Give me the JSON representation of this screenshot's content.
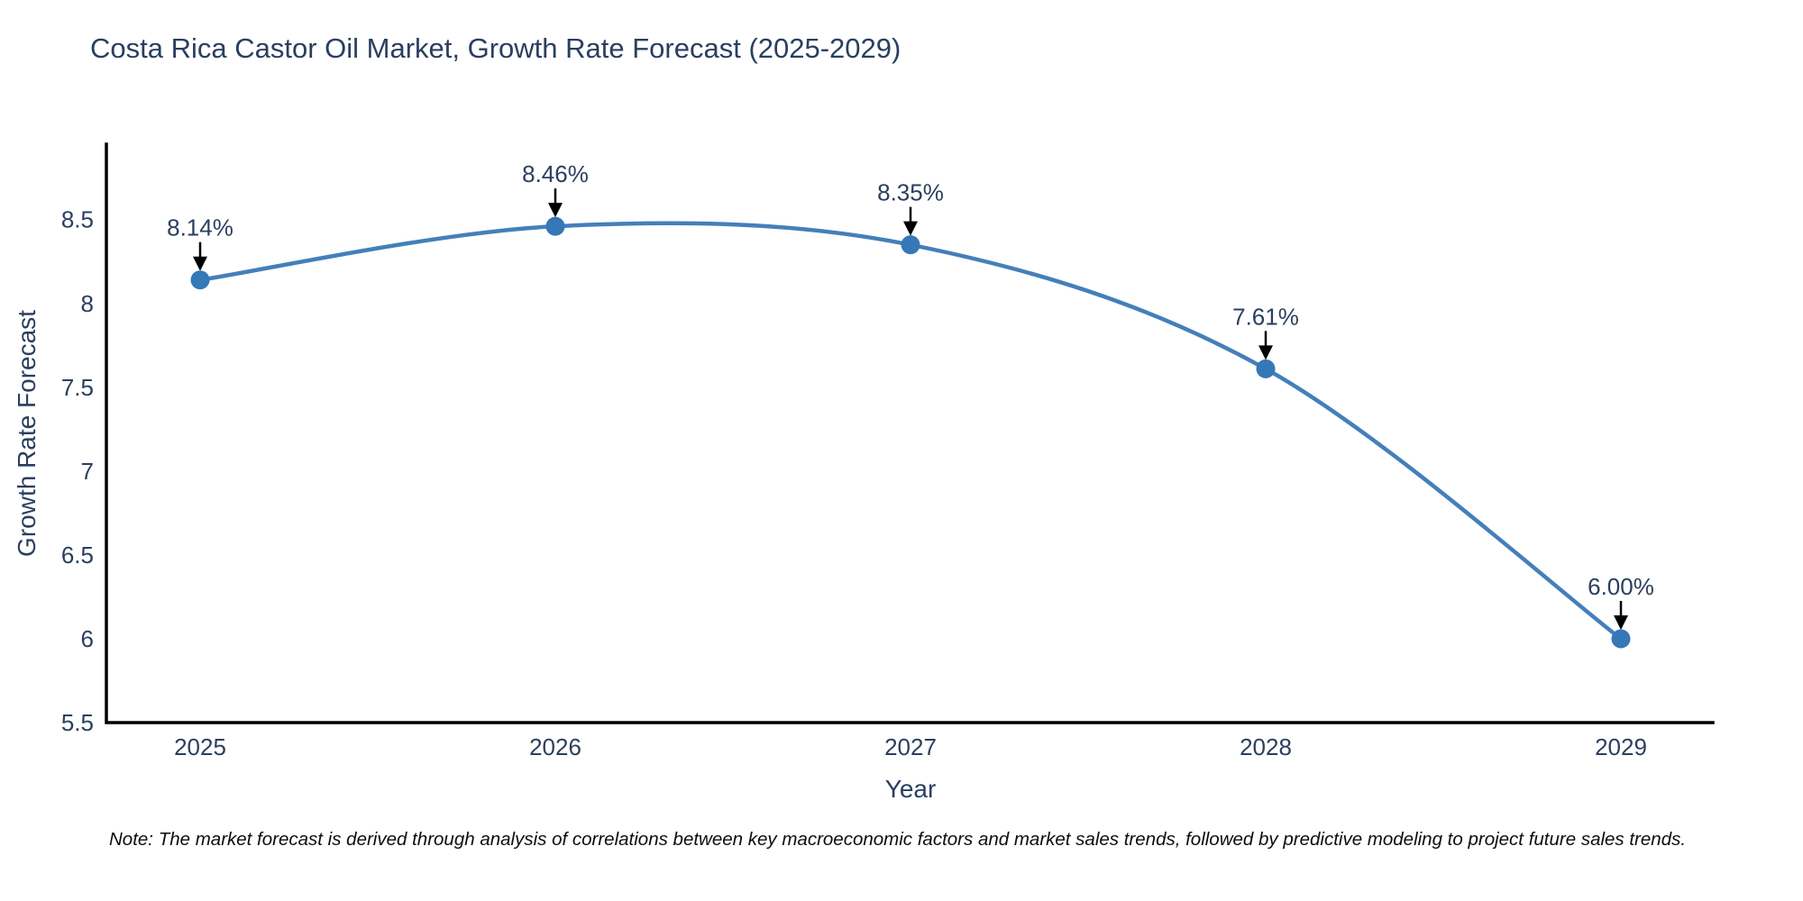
{
  "chart_data": {
    "type": "line",
    "title": "Costa Rica Castor Oil Market, Growth Rate Forecast (2025-2029)",
    "xlabel": "Year",
    "ylabel": "Growth Rate Forecast",
    "x": [
      2025,
      2026,
      2027,
      2028,
      2029
    ],
    "y": [
      8.14,
      8.46,
      8.35,
      7.61,
      6.0
    ],
    "point_labels": [
      "8.14%",
      "8.46%",
      "8.35%",
      "7.61%",
      "6.00%"
    ],
    "xtick_labels": [
      "2025",
      "2026",
      "2027",
      "2028",
      "2029"
    ],
    "ytick_values": [
      8.5,
      8,
      7.5,
      7,
      6.5,
      6,
      5.5
    ],
    "ytick_labels": [
      "8.5",
      "8",
      "7.5",
      "7",
      "6.5",
      "6",
      "5.5"
    ],
    "ylim": [
      5.5,
      8.95
    ],
    "grid": false,
    "legend": false,
    "line_shape": "spline",
    "line_color": "#447fba",
    "marker_color": "#3578b7",
    "axis_color": "#000000",
    "text_color": "#2a3f5f",
    "annotation_arrow_color": "#000000"
  },
  "note": "Note: The market forecast is derived through analysis of correlations between key macroeconomic factors and market sales trends, followed by predictive modeling to project future sales trends."
}
